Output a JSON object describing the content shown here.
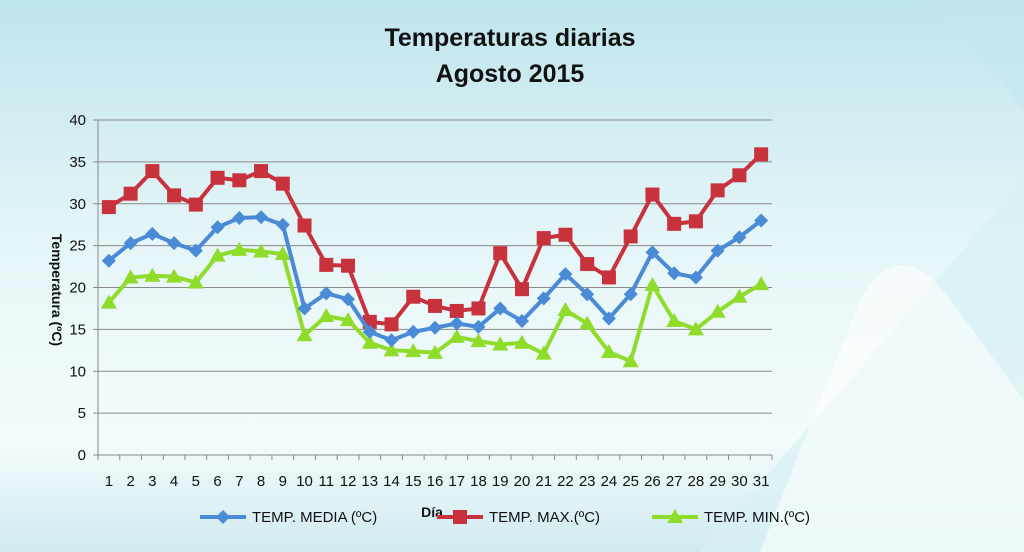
{
  "chart_data": {
    "type": "line",
    "title": "Temperaturas diarias",
    "subtitle": "Agosto 2015",
    "xlabel": "Día",
    "ylabel": "Temperatura (ºC)",
    "ylim": [
      0,
      40
    ],
    "yticks": [
      0,
      5,
      10,
      15,
      20,
      25,
      30,
      35,
      40
    ],
    "grid": true,
    "legend_position": "bottom",
    "x": [
      1,
      2,
      3,
      4,
      5,
      6,
      7,
      8,
      9,
      10,
      11,
      12,
      13,
      14,
      15,
      16,
      17,
      18,
      19,
      20,
      21,
      22,
      23,
      24,
      25,
      26,
      27,
      28,
      29,
      30,
      31
    ],
    "series": [
      {
        "name": "TEMP. MEDIA (ºC)",
        "color": "#4a8ad6",
        "marker": "diamond",
        "values": [
          23.2,
          25.3,
          26.4,
          25.3,
          24.4,
          27.2,
          28.3,
          28.4,
          27.5,
          17.5,
          19.3,
          18.6,
          14.7,
          13.7,
          14.7,
          15.2,
          15.7,
          15.3,
          17.5,
          16.0,
          18.7,
          21.6,
          19.2,
          16.3,
          19.2,
          24.2,
          21.7,
          21.2,
          24.4,
          26.0,
          28.0
        ]
      },
      {
        "name": "TEMP. MAX.(ºC)",
        "color": "#c8323c",
        "marker": "square",
        "values": [
          29.6,
          31.2,
          33.9,
          31.0,
          29.9,
          33.1,
          32.8,
          33.9,
          32.4,
          27.4,
          22.7,
          22.6,
          15.9,
          15.6,
          18.9,
          17.8,
          17.2,
          17.5,
          24.1,
          19.8,
          25.9,
          26.3,
          22.8,
          21.2,
          26.1,
          31.1,
          27.6,
          27.9,
          31.6,
          33.4,
          35.9
        ]
      },
      {
        "name": "TEMP. MIN.(ºC)",
        "color": "#8fdc2a",
        "marker": "triangle",
        "values": [
          18.2,
          21.2,
          21.4,
          21.3,
          20.6,
          23.8,
          24.5,
          24.3,
          24.0,
          14.3,
          16.6,
          16.1,
          13.4,
          12.5,
          12.4,
          12.2,
          14.1,
          13.6,
          13.2,
          13.4,
          12.1,
          17.3,
          15.7,
          12.3,
          11.2,
          20.3,
          16.0,
          15.0,
          17.1,
          18.9,
          20.4
        ]
      }
    ]
  }
}
